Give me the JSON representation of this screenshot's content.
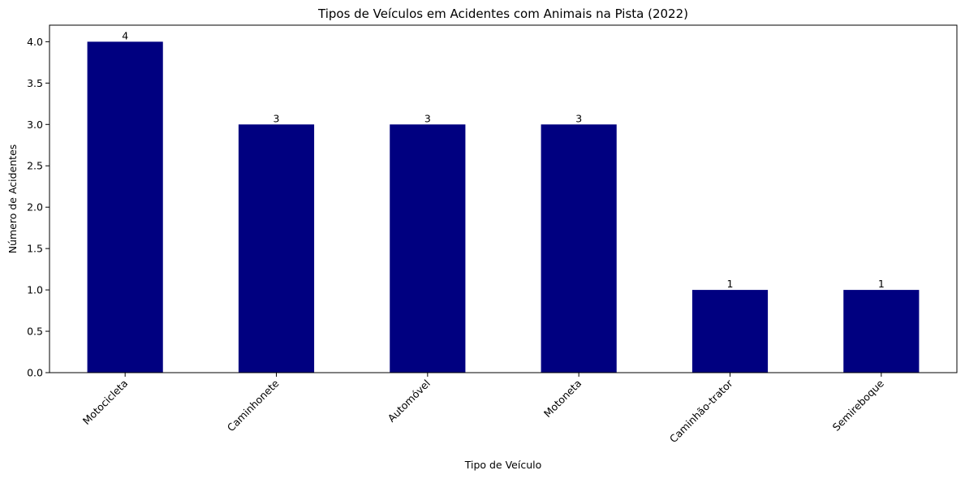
{
  "chart_data": {
    "type": "bar",
    "title": "Tipos de Veículos em Acidentes com Animais na Pista (2022)",
    "xlabel": "Tipo de Veículo",
    "ylabel": "Número de Acidentes",
    "categories": [
      "Motocicleta",
      "Caminhonete",
      "Automóvel",
      "Motoneta",
      "Caminhão-trator",
      "Semireboque"
    ],
    "values": [
      4,
      3,
      3,
      3,
      1,
      1
    ],
    "data_labels": [
      "4",
      "3",
      "3",
      "3",
      "1",
      "1"
    ],
    "ylim": [
      0,
      4.2
    ],
    "yticks": [
      0.0,
      0.5,
      1.0,
      1.5,
      2.0,
      2.5,
      3.0,
      3.5,
      4.0
    ],
    "ytick_labels": [
      "0.0",
      "0.5",
      "1.0",
      "1.5",
      "2.0",
      "2.5",
      "3.0",
      "3.5",
      "4.0"
    ],
    "bar_color": "#000080",
    "grid": false,
    "legend": "none"
  }
}
